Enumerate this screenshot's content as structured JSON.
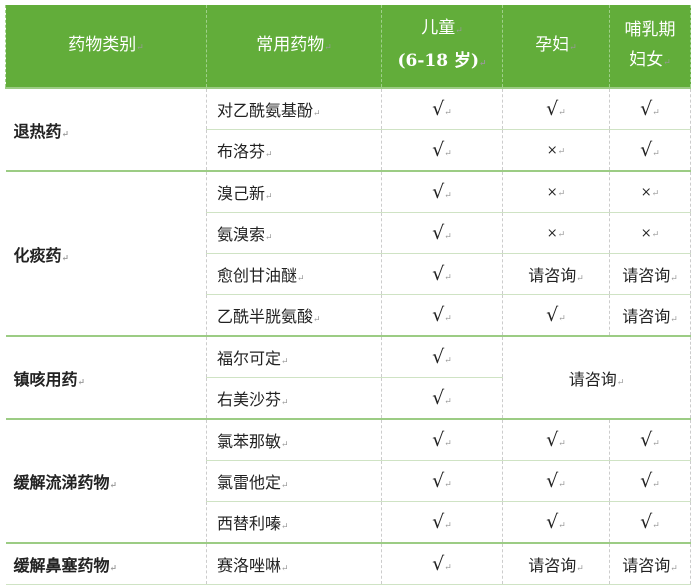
{
  "header": {
    "category": "药物类别",
    "medicine": "常用药物",
    "children": "儿童",
    "children_age": "(6-18 岁)",
    "pregnant": "孕妇",
    "lactating_1": "哺乳期",
    "lactating_2": "妇女"
  },
  "colors": {
    "header_bg": "#62ad3a"
  },
  "groups": [
    {
      "category": "退热药",
      "rows": [
        {
          "medicine": "对乙酰氨基酚",
          "children": "√",
          "pregnant": "√",
          "lactating": "√"
        },
        {
          "medicine": "布洛芬",
          "children": "√",
          "pregnant": "×",
          "lactating": "√"
        }
      ]
    },
    {
      "category": "化痰药",
      "rows": [
        {
          "medicine": "溴己新",
          "children": "√",
          "pregnant": "×",
          "lactating": "×"
        },
        {
          "medicine": "氨溴索",
          "children": "√",
          "pregnant": "×",
          "lactating": "×"
        },
        {
          "medicine": "愈创甘油醚",
          "children": "√",
          "pregnant": "请咨询",
          "lactating": "请咨询"
        },
        {
          "medicine": "乙酰半胱氨酸",
          "children": "√",
          "pregnant": "√",
          "lactating": "请咨询"
        }
      ]
    },
    {
      "category": "镇咳用药",
      "merged_adult": "请咨询",
      "rows": [
        {
          "medicine": "福尔可定",
          "children": "√"
        },
        {
          "medicine": "右美沙芬",
          "children": "√"
        }
      ]
    },
    {
      "category": "缓解流涕药物",
      "rows": [
        {
          "medicine": "氯苯那敏",
          "children": "√",
          "pregnant": "√",
          "lactating": "√"
        },
        {
          "medicine": "氯雷他定",
          "children": "√",
          "pregnant": "√",
          "lactating": "√"
        },
        {
          "medicine": "西替利嗪",
          "children": "√",
          "pregnant": "√",
          "lactating": "√"
        }
      ]
    },
    {
      "category": "缓解鼻塞药物",
      "rows": [
        {
          "medicine": "赛洛唑啉",
          "children": "√",
          "pregnant": "请咨询",
          "lactating": "请咨询"
        }
      ]
    }
  ]
}
